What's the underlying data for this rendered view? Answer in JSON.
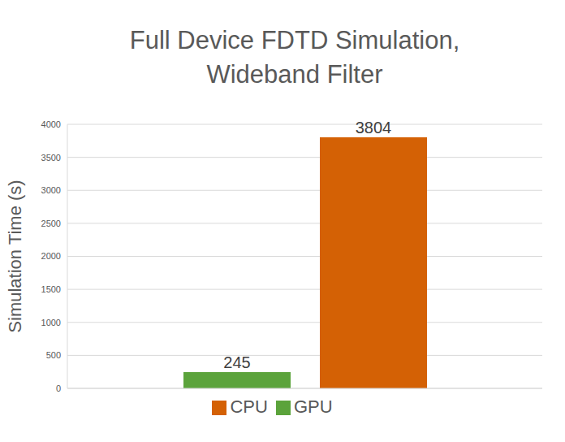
{
  "chart_data": {
    "type": "bar",
    "title": "Full Device FDTD Simulation, Wideband Filter",
    "y_label": "Simulation Time (s)",
    "categories": [
      null
    ],
    "series": [
      {
        "name": "GPU",
        "color": "#5ba33b",
        "values": [
          245
        ]
      },
      {
        "name": "CPU",
        "color": "#d46105",
        "values": [
          3804
        ]
      }
    ],
    "ylim": [
      0,
      4000
    ],
    "yticks": [
      0,
      500,
      1000,
      1500,
      2000,
      2500,
      3000,
      3500,
      4000
    ],
    "grid": true,
    "legend": "bottom",
    "data_labels": true,
    "tick_labels": "y"
  }
}
